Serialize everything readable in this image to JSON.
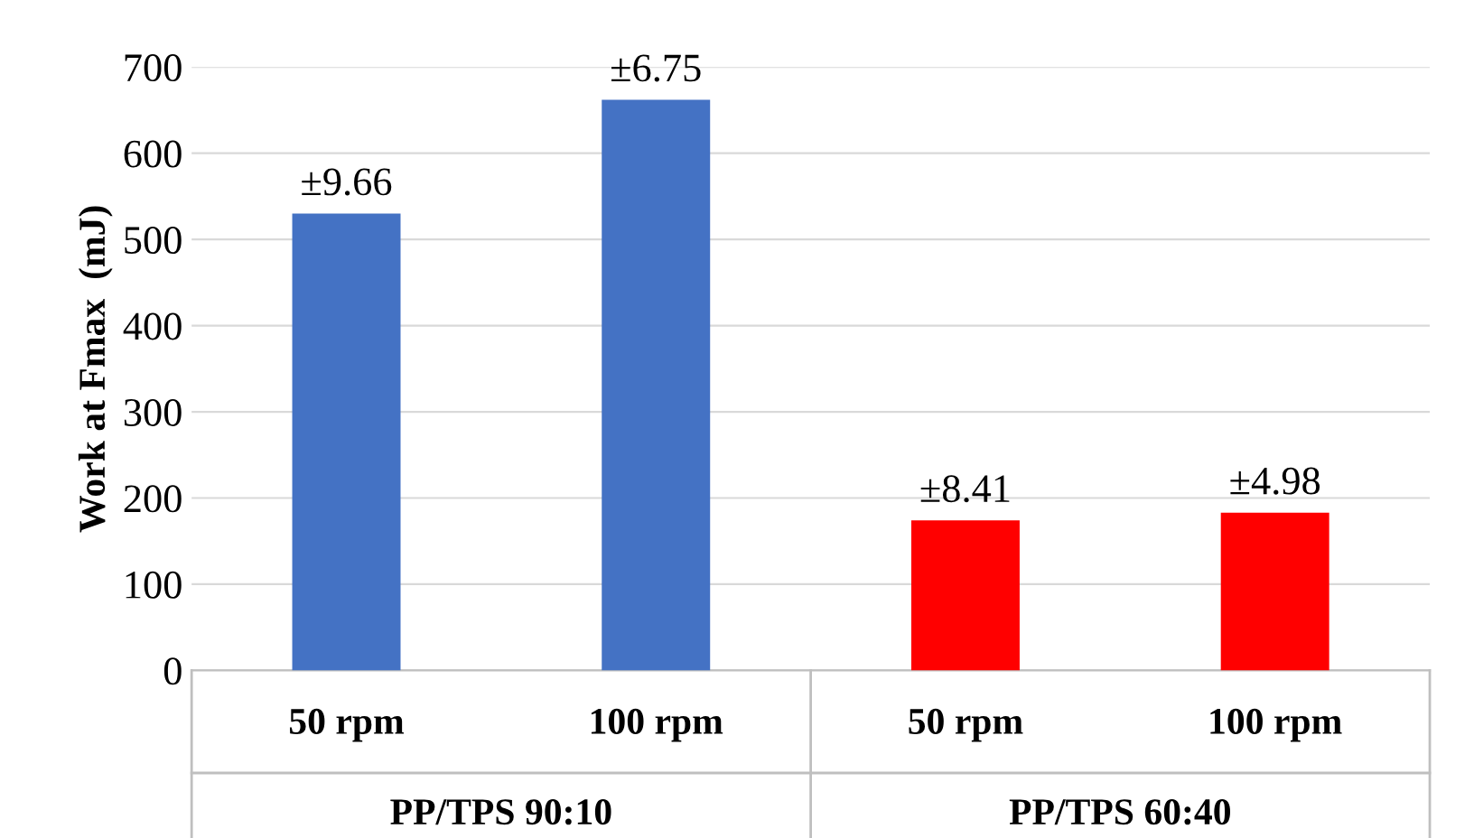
{
  "chart_data": {
    "type": "bar",
    "ylabel": "Work at Fmax  (mJ)",
    "categories": [
      "50 rpm",
      "100 rpm",
      "50 rpm",
      "100 rpm"
    ],
    "values": [
      530,
      662,
      174,
      183
    ],
    "colors": [
      "#4472c4",
      "#4472c4",
      "#ff0000",
      "#ff0000"
    ],
    "annotations": [
      {
        "text": "±9.66",
        "y": 530
      },
      {
        "text": "±6.75",
        "y": 662
      },
      {
        "text": "±8.41",
        "y": 174
      },
      {
        "text": "±4.98",
        "y": 183
      },
      "PP/TPS 90:10",
      "PP/TPS 60:40"
    ],
    "ylim": [
      0,
      700
    ],
    "yticks": [
      0,
      100,
      200,
      300,
      400,
      500,
      600,
      700
    ],
    "grid": "y"
  }
}
